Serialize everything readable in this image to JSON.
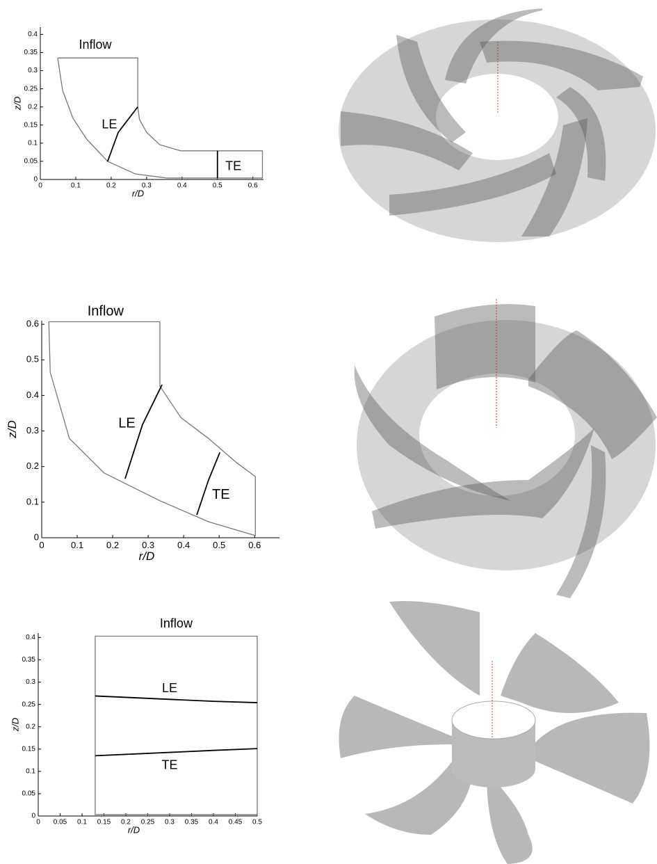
{
  "chart_data": [
    {
      "type": "line",
      "xlabel": "r/D",
      "ylabel": "z/D",
      "xlim": [
        0,
        0.63
      ],
      "ylim": [
        0,
        0.42
      ],
      "xticks": [
        0,
        0.1,
        0.2,
        0.3,
        0.4,
        0.5,
        0.6
      ],
      "yticks": [
        0,
        0.05,
        0.1,
        0.15,
        0.2,
        0.25,
        0.3,
        0.35,
        0.4
      ],
      "series": [
        {
          "color": "#777777",
          "x": [
            0.049,
            0.275,
            0.275,
            0.28,
            0.3,
            0.337,
            0.396,
            0.627,
            0.627,
            0.357,
            0.269,
            0.19,
            0.131,
            0.092,
            0.063,
            0.049
          ],
          "values": [
            0.335,
            0.335,
            0.2,
            0.165,
            0.13,
            0.096,
            0.079,
            0.079,
            0.004,
            0.004,
            0.015,
            0.05,
            0.111,
            0.169,
            0.245,
            0.335
          ]
        },
        {
          "color": "#000000",
          "x": [
            0.19,
            0.22,
            0.275
          ],
          "values": [
            0.05,
            0.13,
            0.2
          ]
        },
        {
          "color": "#000000",
          "x": [
            0.5,
            0.5
          ],
          "values": [
            0.004,
            0.079
          ]
        }
      ],
      "annotations": [
        {
          "text": "Inflow",
          "x": 0.155,
          "y": 0.37,
          "color": "#2b2b8c"
        },
        {
          "text": "LE",
          "x": 0.195,
          "y": 0.15,
          "color": "#e0245e"
        },
        {
          "text": "TE",
          "x": 0.545,
          "y": 0.035,
          "color": "#e0245e"
        }
      ]
    },
    {
      "type": "line",
      "xlabel": "r/D",
      "ylabel": "z/D",
      "xlim": [
        0,
        0.67
      ],
      "ylim": [
        0,
        0.61
      ],
      "xticks": [
        0,
        0.1,
        0.2,
        0.3,
        0.4,
        0.5,
        0.6
      ],
      "yticks": [
        0,
        0.1,
        0.2,
        0.3,
        0.4,
        0.5,
        0.6
      ],
      "series": [
        {
          "color": "#777777",
          "x": [
            0.02,
            0.333,
            0.333,
            0.392,
            0.47,
            0.549,
            0.602,
            0.602,
            0.47,
            0.333,
            0.176,
            0.078,
            0.024,
            0.02
          ],
          "values": [
            0.607,
            0.607,
            0.426,
            0.338,
            0.279,
            0.211,
            0.172,
            0.006,
            0.045,
            0.104,
            0.182,
            0.279,
            0.465,
            0.607
          ]
        },
        {
          "color": "#000000",
          "x": [
            0.235,
            0.284,
            0.339
          ],
          "values": [
            0.166,
            0.318,
            0.43
          ]
        },
        {
          "color": "#000000",
          "x": [
            0.437,
            0.47,
            0.502
          ],
          "values": [
            0.064,
            0.162,
            0.24
          ]
        }
      ],
      "annotations": [
        {
          "text": "Inflow",
          "x": 0.18,
          "y": 0.635,
          "color": "#2b2b8c"
        },
        {
          "text": "LE",
          "x": 0.24,
          "y": 0.32,
          "color": "#e0245e"
        },
        {
          "text": "TE",
          "x": 0.505,
          "y": 0.12,
          "color": "#e0245e"
        }
      ]
    },
    {
      "type": "line",
      "xlabel": "r/D",
      "ylabel": "z/D",
      "xlim": [
        0,
        0.5
      ],
      "ylim": [
        0,
        0.41
      ],
      "xticks": [
        0,
        0.05,
        0.1,
        0.15,
        0.2,
        0.25,
        0.3,
        0.35,
        0.4,
        0.45,
        0.5
      ],
      "yticks": [
        0,
        0.05,
        0.1,
        0.15,
        0.2,
        0.25,
        0.3,
        0.35,
        0.4
      ],
      "series": [
        {
          "color": "#777777",
          "x": [
            0.13,
            0.5,
            0.5,
            0.13,
            0.13
          ],
          "values": [
            0.403,
            0.403,
            0.003,
            0.003,
            0.403
          ]
        },
        {
          "color": "#000000",
          "x": [
            0.13,
            0.4,
            0.5
          ],
          "values": [
            0.269,
            0.257,
            0.254
          ]
        },
        {
          "color": "#000000",
          "x": [
            0.13,
            0.4,
            0.5
          ],
          "values": [
            0.135,
            0.147,
            0.151
          ]
        }
      ],
      "annotations": [
        {
          "text": "Inflow",
          "x": 0.315,
          "y": 0.43,
          "color": "#2b2b8c"
        },
        {
          "text": "LE",
          "x": 0.3,
          "y": 0.285,
          "color": "#e0245e"
        },
        {
          "text": "TE",
          "x": 0.3,
          "y": 0.113,
          "color": "#e0245e"
        }
      ]
    }
  ]
}
